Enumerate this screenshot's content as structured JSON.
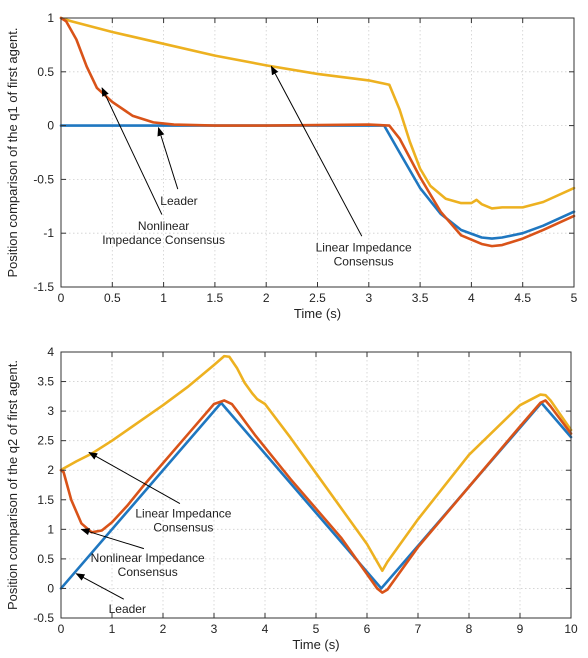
{
  "colors": {
    "leader": "#1f77c0",
    "nonlinear": "#d95319",
    "linear": "#edb120",
    "grid": "#cfcfcf",
    "axis": "#333333",
    "arrow": "#000000"
  },
  "chart_data": [
    {
      "type": "line",
      "xlabel": "Time (s)",
      "ylabel": "Position comparison of the q1 of first agent.",
      "xlim": [
        0,
        5
      ],
      "ylim": [
        -1.5,
        1
      ],
      "xticks": [
        0,
        0.5,
        1,
        1.5,
        2,
        2.5,
        3,
        3.5,
        4,
        4.5,
        5
      ],
      "yticks": [
        -1.5,
        -1,
        -0.5,
        0,
        0.5,
        1
      ],
      "grid": true,
      "series": [
        {
          "key": "leader",
          "x": [
            0,
            3.15,
            3.3,
            3.5,
            3.7,
            3.9,
            4.1,
            4.2,
            4.3,
            4.5,
            4.7,
            5.0
          ],
          "y": [
            0,
            0,
            -0.25,
            -0.58,
            -0.82,
            -0.97,
            -1.04,
            -1.05,
            -1.04,
            -1.0,
            -0.93,
            -0.8
          ]
        },
        {
          "key": "nonlinear",
          "x": [
            0,
            0.05,
            0.15,
            0.25,
            0.35,
            0.5,
            0.7,
            0.9,
            1.1,
            1.5,
            2.0,
            3.0,
            3.2,
            3.3,
            3.5,
            3.7,
            3.9,
            4.1,
            4.2,
            4.3,
            4.5,
            4.7,
            5.0
          ],
          "y": [
            1.0,
            0.97,
            0.8,
            0.55,
            0.35,
            0.22,
            0.09,
            0.03,
            0.01,
            0.0,
            0.0,
            0.01,
            0.0,
            -0.12,
            -0.48,
            -0.8,
            -1.02,
            -1.1,
            -1.12,
            -1.11,
            -1.05,
            -0.97,
            -0.84
          ]
        },
        {
          "key": "linear",
          "x": [
            0,
            0.1,
            0.5,
            1.0,
            1.5,
            2.0,
            2.5,
            3.0,
            3.2,
            3.3,
            3.4,
            3.5,
            3.6,
            3.75,
            3.9,
            4.0,
            4.05,
            4.1,
            4.2,
            4.3,
            4.5,
            4.7,
            5.0
          ],
          "y": [
            1.0,
            0.97,
            0.87,
            0.76,
            0.65,
            0.56,
            0.48,
            0.42,
            0.38,
            0.15,
            -0.15,
            -0.4,
            -0.56,
            -0.68,
            -0.72,
            -0.72,
            -0.69,
            -0.73,
            -0.77,
            -0.76,
            -0.76,
            -0.71,
            -0.58
          ]
        }
      ],
      "annotations": [
        {
          "lines": [
            "Leader"
          ],
          "tx": 1.15,
          "ty": -0.7,
          "ax": 0.95,
          "ay": -0.02
        },
        {
          "lines": [
            "Nonlinear",
            "Impedance Consensus"
          ],
          "tx": 1.0,
          "ty": -1.0,
          "ax": 0.4,
          "ay": 0.35
        },
        {
          "lines": [
            "Linear Impedance",
            "Consensus"
          ],
          "tx": 2.95,
          "ty": -1.2,
          "ax": 2.05,
          "ay": 0.55
        }
      ]
    },
    {
      "type": "line",
      "xlabel": "Time (s)",
      "ylabel": "Position comparison of the q2 of first agent.",
      "xlim": [
        0,
        10
      ],
      "ylim": [
        -0.5,
        4
      ],
      "xticks": [
        0,
        1,
        2,
        3,
        4,
        5,
        6,
        7,
        8,
        9,
        10
      ],
      "yticks": [
        -0.5,
        0,
        0.5,
        1,
        1.5,
        2,
        2.5,
        3,
        3.5,
        4
      ],
      "grid": true,
      "series": [
        {
          "key": "leader",
          "x": [
            0,
            3.14,
            6.28,
            9.42,
            10.0
          ],
          "y": [
            0,
            3.14,
            0,
            3.14,
            2.56
          ]
        },
        {
          "key": "nonlinear",
          "x": [
            0,
            0.05,
            0.2,
            0.4,
            0.6,
            0.8,
            1.0,
            1.3,
            1.6,
            2.0,
            2.5,
            3.0,
            3.2,
            3.35,
            3.5,
            3.8,
            4.5,
            5.5,
            6.2,
            6.3,
            6.4,
            7.0,
            8.0,
            9.0,
            9.4,
            9.5,
            9.6,
            10.0
          ],
          "y": [
            2.0,
            1.97,
            1.5,
            1.1,
            0.95,
            0.98,
            1.12,
            1.4,
            1.72,
            2.12,
            2.62,
            3.12,
            3.18,
            3.12,
            2.95,
            2.6,
            1.85,
            0.85,
            0.0,
            -0.07,
            -0.02,
            0.7,
            1.72,
            2.74,
            3.14,
            3.18,
            3.08,
            2.62
          ]
        },
        {
          "key": "linear",
          "x": [
            0,
            0.05,
            0.3,
            0.6,
            1.0,
            1.5,
            2.0,
            2.5,
            3.0,
            3.2,
            3.3,
            3.45,
            3.6,
            3.75,
            3.85,
            4.0,
            4.5,
            5.0,
            5.5,
            6.0,
            6.3,
            6.4,
            7.0,
            8.0,
            9.0,
            9.4,
            9.5,
            9.6,
            10.0
          ],
          "y": [
            2.0,
            2.03,
            2.15,
            2.28,
            2.5,
            2.8,
            3.1,
            3.42,
            3.78,
            3.93,
            3.92,
            3.73,
            3.48,
            3.3,
            3.2,
            3.12,
            2.55,
            1.95,
            1.35,
            0.75,
            0.3,
            0.45,
            1.17,
            2.26,
            3.1,
            3.28,
            3.27,
            3.18,
            2.68
          ]
        }
      ],
      "annotations": [
        {
          "lines": [
            "Linear Impedance",
            "Consensus"
          ],
          "tx": 2.4,
          "ty": 1.15,
          "ax": 0.55,
          "ay": 2.3
        },
        {
          "lines": [
            "Nonlinear Impedance",
            "Consensus"
          ],
          "tx": 1.7,
          "ty": 0.4,
          "ax": 0.4,
          "ay": 1.0
        },
        {
          "lines": [
            "Leader"
          ],
          "tx": 1.3,
          "ty": -0.35,
          "ax": 0.3,
          "ay": 0.25
        }
      ]
    }
  ]
}
